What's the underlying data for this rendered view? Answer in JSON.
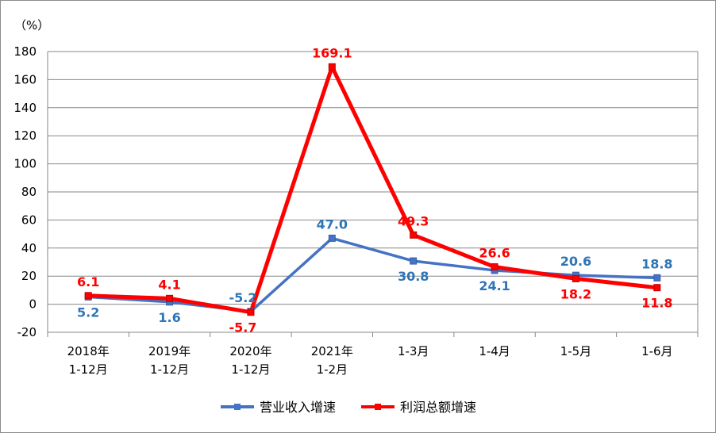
{
  "chart_data": {
    "type": "line",
    "unit_label": "（%）",
    "categories": [
      [
        "2018年",
        "1-12月"
      ],
      [
        "2019年",
        "1-12月"
      ],
      [
        "2020年",
        "1-12月"
      ],
      [
        "2021年",
        "1-2月"
      ],
      [
        "1-3月"
      ],
      [
        "1-4月"
      ],
      [
        "1-5月"
      ],
      [
        "1-6月"
      ]
    ],
    "series": [
      {
        "name": "营业收入增速",
        "color": "#4472C4",
        "values": [
          5.2,
          1.6,
          -5.2,
          47.0,
          30.8,
          24.1,
          20.6,
          18.8
        ],
        "labels": [
          "5.2",
          "1.6",
          "-5.2",
          "47.0",
          "30.8",
          "24.1",
          "20.6",
          "18.8"
        ],
        "label_positions": [
          "below",
          "below",
          "above",
          "above",
          "below",
          "below",
          "above",
          "above"
        ]
      },
      {
        "name": "利润总额增速",
        "color": "#FF0000",
        "values": [
          6.1,
          4.1,
          -5.7,
          169.1,
          49.3,
          26.6,
          18.2,
          11.8
        ],
        "labels": [
          "6.1",
          "4.1",
          "-5.7",
          "169.1",
          "49.3",
          "26.6",
          "18.2",
          "11.8"
        ],
        "label_positions": [
          "above",
          "above",
          "below",
          "above",
          "above",
          "above",
          "below",
          "below"
        ]
      }
    ],
    "ylim": [
      -20,
      180
    ],
    "yticks": [
      -20,
      0,
      20,
      40,
      60,
      80,
      100,
      120,
      140,
      160,
      180
    ],
    "grid": true,
    "legend_position": "bottom"
  }
}
